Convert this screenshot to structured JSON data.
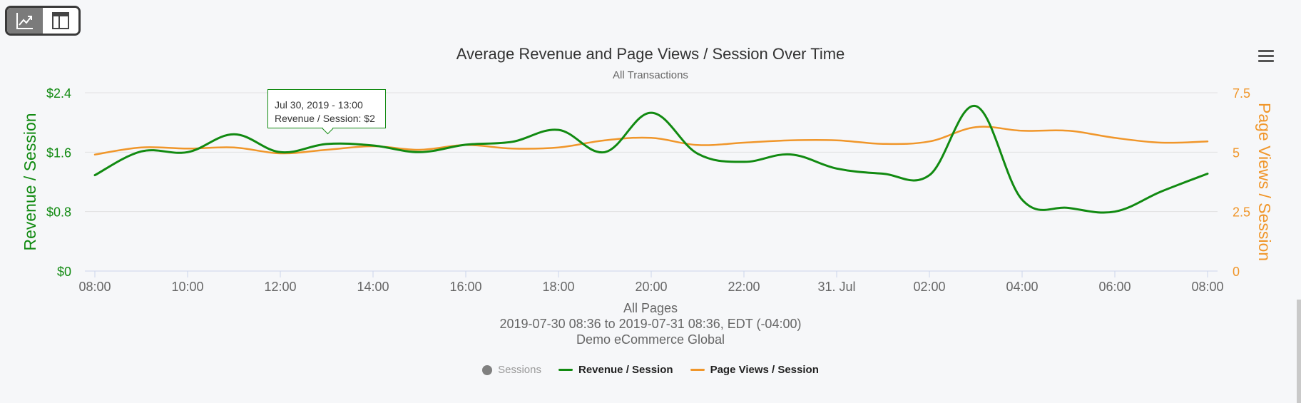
{
  "view_toggle": {
    "chart_icon": "line-chart-icon",
    "table_icon": "table-layout-icon"
  },
  "menu_icon": "hamburger-menu-icon",
  "tooltip": {
    "line1": "Jul 30, 2019 - 13:00",
    "line2": "Revenue / Session: $2"
  },
  "footer": {
    "line1": "All Pages",
    "line2": "2019-07-30 08:36 to 2019-07-31 08:36, EDT (-04:00)",
    "line3": "Demo eCommerce Global"
  },
  "legend": [
    {
      "label": "Sessions",
      "color": "#808080",
      "marker": "dot",
      "hidden": true
    },
    {
      "label": "Revenue / Session",
      "color": "#118a11",
      "marker": "line",
      "hidden": false
    },
    {
      "label": "Page Views / Session",
      "color": "#f0962a",
      "marker": "line",
      "hidden": false
    }
  ],
  "chart_data": {
    "type": "line",
    "title": "Average Revenue and Page Views / Session Over Time",
    "subtitle": "All Transactions",
    "x_tick_labels": [
      "08:00",
      "10:00",
      "12:00",
      "14:00",
      "16:00",
      "18:00",
      "20:00",
      "22:00",
      "31. Jul",
      "02:00",
      "04:00",
      "06:00",
      "08:00"
    ],
    "x_hours": [
      8,
      9,
      10,
      11,
      12,
      13,
      14,
      15,
      16,
      17,
      18,
      19,
      20,
      21,
      22,
      23,
      24,
      25,
      26,
      27,
      28,
      29,
      30,
      31,
      32
    ],
    "y_left": {
      "label": "Revenue / Session",
      "ticks": [
        "$0",
        "$0.8",
        "$1.6",
        "$2.4"
      ],
      "range": [
        0,
        2.4
      ],
      "color": "#118a11"
    },
    "y_right": {
      "label": "Page Views / Session",
      "ticks": [
        "0",
        "2.5",
        "5",
        "7.5"
      ],
      "range": [
        0,
        7.5
      ],
      "color": "#f0962a"
    },
    "grid": true,
    "legend_position": "bottom",
    "series": [
      {
        "name": "Revenue / Session",
        "axis": "left",
        "color": "#118a11",
        "values": [
          1.29,
          1.61,
          1.6,
          1.84,
          1.6,
          1.71,
          1.69,
          1.6,
          1.7,
          1.74,
          1.9,
          1.6,
          2.13,
          1.58,
          1.47,
          1.57,
          1.38,
          1.31,
          1.29,
          2.22,
          0.96,
          0.85,
          0.8,
          1.07,
          1.31
        ]
      },
      {
        "name": "Page Views / Session",
        "axis": "right",
        "color": "#f0962a",
        "values": [
          4.9,
          5.2,
          5.15,
          5.2,
          4.95,
          5.1,
          5.25,
          5.1,
          5.3,
          5.15,
          5.2,
          5.5,
          5.6,
          5.3,
          5.4,
          5.5,
          5.5,
          5.35,
          5.45,
          6.05,
          5.9,
          5.9,
          5.6,
          5.4,
          5.45
        ]
      }
    ]
  }
}
